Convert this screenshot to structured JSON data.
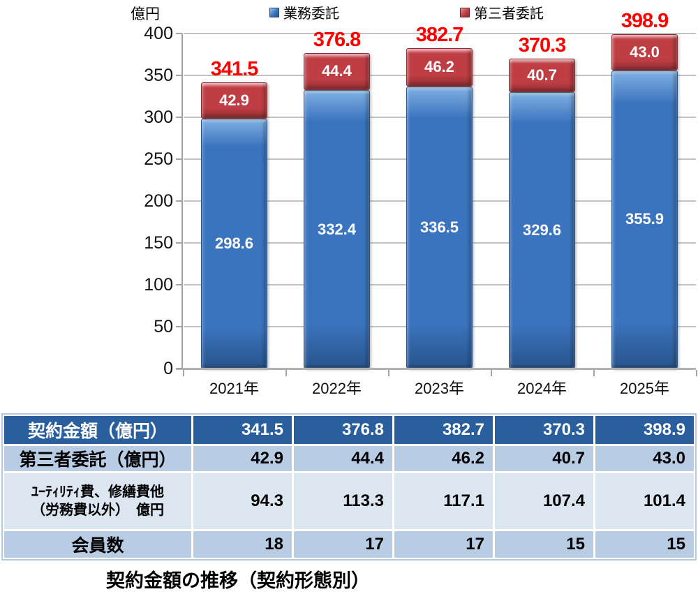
{
  "chart_data": {
    "type": "bar",
    "stacked": true,
    "unit_label": "億円",
    "categories": [
      "2021年",
      "2022年",
      "2023年",
      "2024年",
      "2025年"
    ],
    "series": [
      {
        "name": "業務委託",
        "color": "#3b74be",
        "values": [
          298.6,
          332.4,
          336.5,
          329.6,
          355.9
        ],
        "labels": [
          "298.6",
          "332.4",
          "336.5",
          "329.6",
          "355.9"
        ]
      },
      {
        "name": "第三者委託",
        "color": "#be3e44",
        "values": [
          42.9,
          44.4,
          46.2,
          40.7,
          43.0
        ],
        "labels": [
          "42.9",
          "44.4",
          "46.2",
          "40.7",
          "43.0"
        ]
      }
    ],
    "totals": [
      341.5,
      376.8,
      382.7,
      370.3,
      398.9
    ],
    "total_labels": [
      "341.5",
      "376.8",
      "382.7",
      "370.3",
      "398.9"
    ],
    "total_label_color": "#ff0000",
    "ylim": [
      0,
      400
    ],
    "yticks": [
      0,
      50,
      100,
      150,
      200,
      250,
      300,
      350,
      400
    ],
    "grid": true,
    "legend_position": "top"
  },
  "table": {
    "rows": [
      {
        "style": "dark",
        "header_lines": [
          "契約金額（億円）"
        ],
        "values": [
          "341.5",
          "376.8",
          "382.7",
          "370.3",
          "398.9"
        ]
      },
      {
        "style": "medium",
        "header_lines": [
          "第三者委託（億円）"
        ],
        "values": [
          "42.9",
          "44.4",
          "46.2",
          "40.7",
          "43.0"
        ]
      },
      {
        "style": "light",
        "header_lines": [
          "ﾕｰﾃｨﾘﾃｨ費、修繕費他",
          "（労務費以外）　億円"
        ],
        "values": [
          "94.3",
          "113.3",
          "117.1",
          "107.4",
          "101.4"
        ]
      },
      {
        "style": "medium",
        "header_lines": [
          "会員数"
        ],
        "values": [
          "18",
          "17",
          "17",
          "15",
          "15"
        ]
      }
    ]
  },
  "caption": "契約金額の推移（契約形態別）",
  "colors": {
    "bar_blue": "#3b74be",
    "bar_blue_light": "#7fb0e3",
    "bar_blue_dark": "#28548c",
    "bar_red": "#be3e44",
    "bar_red_light": "#dd8287",
    "bar_red_dark": "#8c2d31",
    "table_header_bg": "#2a5f9e",
    "table_medium_bg": "#b8cce4",
    "table_light_bg": "#dce6f1",
    "grid": "#c2c2c2",
    "axis": "#a3a3a3"
  }
}
